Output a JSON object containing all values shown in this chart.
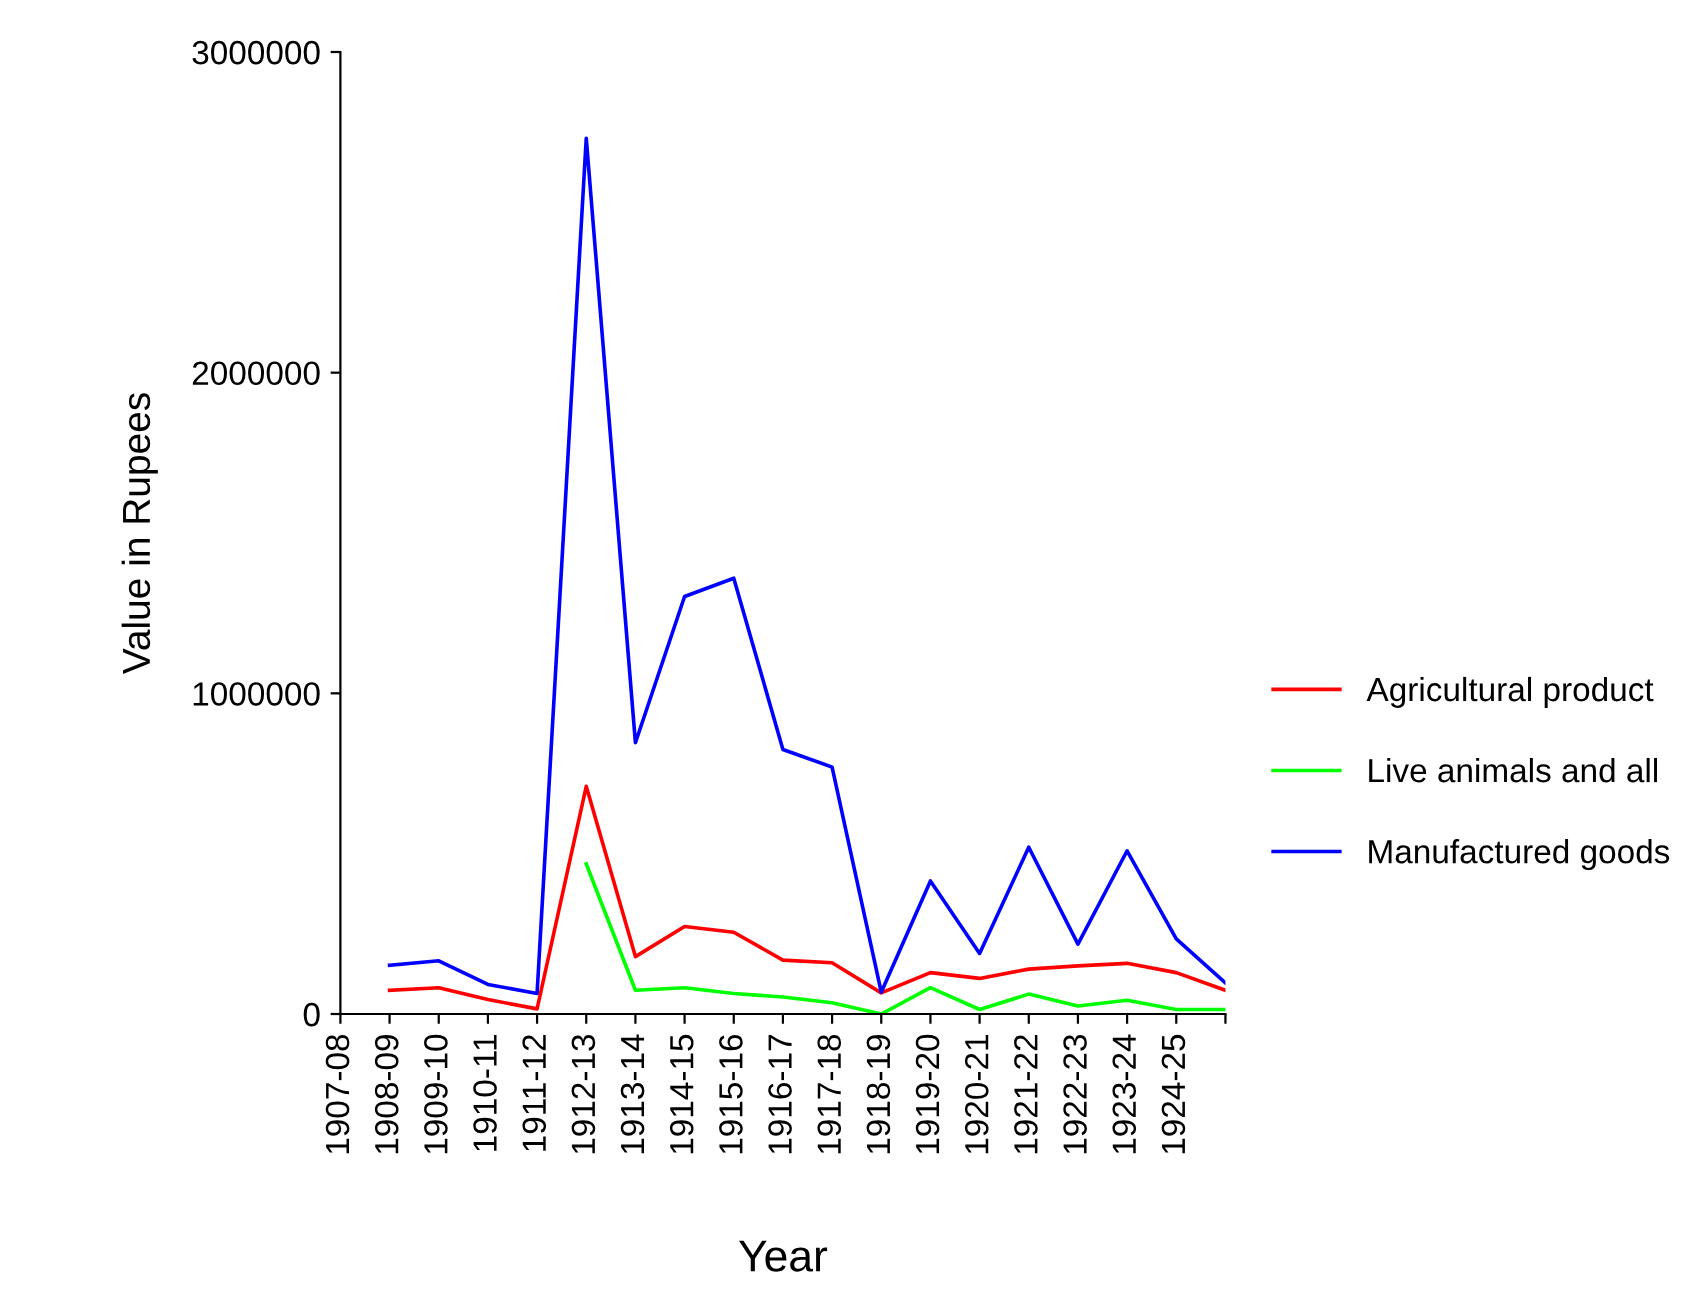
{
  "chart_data": {
    "type": "line",
    "xlabel": "Year",
    "ylabel": "Value in Rupees",
    "categories": [
      "1907-08",
      "1908-09",
      "1909-10",
      "1910-11",
      "1911-12",
      "1912-13",
      "1913-14",
      "1914-15",
      "1915-16",
      "1916-17",
      "1917-18",
      "1918-19",
      "1919-20",
      "1920-21",
      "1921-22",
      "1922-23",
      "1923-24",
      "1924-25",
      null
    ],
    "series": [
      {
        "name": "Agricultural product",
        "color": "#ff0000",
        "values": [
          null,
          74000,
          82000,
          45000,
          16000,
          710000,
          179000,
          273000,
          255000,
          168000,
          160000,
          66000,
          129000,
          111000,
          140000,
          150000,
          158000,
          129000,
          74000
        ]
      },
      {
        "name": "Live animals and all",
        "color": "#00ff00",
        "values": [
          null,
          null,
          null,
          null,
          null,
          468000,
          74000,
          82000,
          64000,
          53000,
          35000,
          0,
          82000,
          14000,
          62000,
          25000,
          43000,
          14000,
          14000
        ]
      },
      {
        "name": "Manufactured goods",
        "color": "#0000ff",
        "values": [
          null,
          152000,
          166000,
          92000,
          64000,
          2731000,
          846000,
          1302000,
          1359000,
          825000,
          770000,
          68000,
          415000,
          189000,
          520000,
          218000,
          509000,
          234000,
          97000
        ]
      }
    ],
    "ylim": [
      0,
      3000000
    ],
    "yticks": [
      0,
      1000000,
      2000000,
      3000000
    ],
    "grid": false,
    "legend": "right"
  }
}
